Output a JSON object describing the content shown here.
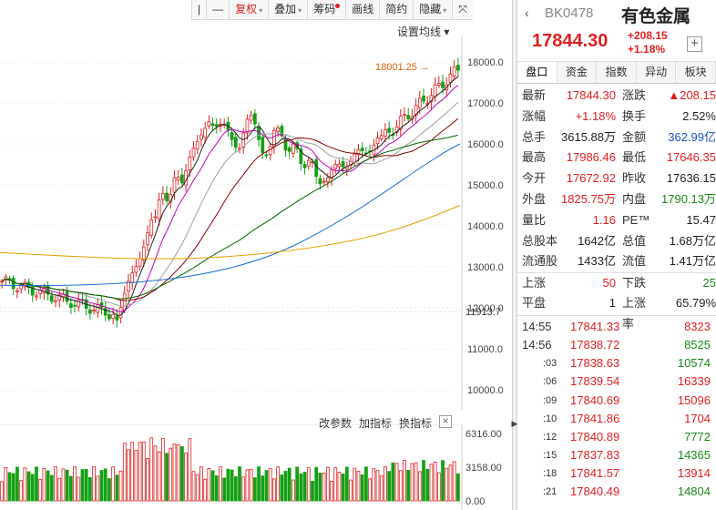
{
  "toolbar": {
    "items": [
      {
        "label": "|",
        "name": "toolbar-pipe-button",
        "caret": false
      },
      {
        "label": "—",
        "name": "toolbar-minus-button",
        "caret": false
      },
      {
        "label": "复权",
        "name": "toolbar-adjust-button",
        "caret": true,
        "active": true
      },
      {
        "label": "叠加",
        "name": "toolbar-overlay-button",
        "caret": true
      },
      {
        "label": "筹码",
        "name": "toolbar-chips-button",
        "dot": true
      },
      {
        "label": "画线",
        "name": "toolbar-draw-button"
      },
      {
        "label": "简约",
        "name": "toolbar-simple-button"
      },
      {
        "label": "隐藏",
        "name": "toolbar-hide-button",
        "caret": true
      },
      {
        "label": "⤧",
        "name": "toolbar-fullscreen-button"
      }
    ],
    "ma_settings": "设置均线 ▾"
  },
  "chart": {
    "price_axis": [
      "18000.0",
      "17000.0",
      "16000.0",
      "15000.0",
      "14000.0",
      "13000.0",
      "12000.0",
      "11000.0",
      "10000.0"
    ],
    "price_marker": "11913.7",
    "high_marker": "18001.25",
    "vol_axis": [
      "6316.00",
      "3158.00",
      "0.00"
    ],
    "indicator_buttons": [
      "改参数",
      "加指标",
      "换指标"
    ],
    "colors": {
      "up": "#e02020",
      "down": "#14a014",
      "ma5": "#222222",
      "ma10": "#c000c0",
      "ma20": "#a0a0a0",
      "ma30": "#8b0000",
      "ma60": "#006400",
      "ma120": "#1e6fd0",
      "ma250": "#e6a000"
    }
  },
  "panel": {
    "code": "BK0478",
    "name": "有色金属",
    "price": "17844.30",
    "change": "+208.15",
    "change_pct": "+1.18%",
    "tabs": [
      "盘口",
      "资金",
      "指数",
      "异动",
      "板块"
    ],
    "stats": [
      {
        "l1": "最新",
        "v1": "17844.30",
        "c1": "red",
        "l2": "涨跌",
        "v2": "▲208.15",
        "c2": "red"
      },
      {
        "l1": "涨幅",
        "v1": "+1.18%",
        "c1": "red",
        "l2": "换手",
        "v2": "2.52%",
        "c2": "blk"
      },
      {
        "l1": "总手",
        "v1": "3615.88万",
        "c1": "blk",
        "l2": "金额",
        "v2": "362.99亿",
        "c2": "blue"
      },
      {
        "l1": "最高",
        "v1": "17986.46",
        "c1": "red",
        "l2": "最低",
        "v2": "17646.35",
        "c2": "red"
      },
      {
        "l1": "今开",
        "v1": "17672.92",
        "c1": "red",
        "l2": "昨收",
        "v2": "17636.15",
        "c2": "blk"
      },
      {
        "l1": "外盘",
        "v1": "1825.75万",
        "c1": "red",
        "l2": "内盘",
        "v2": "1790.13万",
        "c2": "green"
      },
      {
        "l1": "量比",
        "v1": "1.16",
        "c1": "red",
        "l2": "PE™",
        "v2": "15.47",
        "c2": "blk"
      },
      {
        "l1": "总股本",
        "v1": "1642亿",
        "c1": "blk",
        "l2": "总值",
        "v2": "1.68万亿",
        "c2": "blk"
      },
      {
        "l1": "流通股",
        "v1": "1433亿",
        "c1": "blk",
        "l2": "流值",
        "v2": "1.41万亿",
        "c2": "blk"
      },
      {
        "l1": "上涨",
        "v1": "50",
        "c1": "red",
        "l2": "下跌",
        "v2": "25",
        "c2": "green"
      },
      {
        "l1": "平盘",
        "v1": "1",
        "c1": "blk",
        "l2": "上涨率",
        "v2": "65.79%",
        "c2": "blk"
      }
    ],
    "ticks": [
      {
        "t": "14:55",
        "sub": false,
        "p": "17841.33",
        "v": "8323",
        "c": "red"
      },
      {
        "t": "14:56",
        "sub": false,
        "p": "17838.72",
        "v": "8525",
        "c": "green"
      },
      {
        "t": ":03",
        "sub": true,
        "p": "17838.63",
        "v": "10574",
        "c": "green"
      },
      {
        "t": ":06",
        "sub": true,
        "p": "17839.54",
        "v": "16339",
        "c": "red"
      },
      {
        "t": ":09",
        "sub": true,
        "p": "17840.69",
        "v": "15096",
        "c": "red"
      },
      {
        "t": ":10",
        "sub": true,
        "p": "17841.86",
        "v": "1704",
        "c": "red"
      },
      {
        "t": ":12",
        "sub": true,
        "p": "17840.89",
        "v": "7772",
        "c": "green"
      },
      {
        "t": ":15",
        "sub": true,
        "p": "17837.83",
        "v": "14365",
        "c": "green"
      },
      {
        "t": ":18",
        "sub": true,
        "p": "17841.57",
        "v": "13914",
        "c": "red"
      },
      {
        "t": ":21",
        "sub": true,
        "p": "17840.49",
        "v": "14804",
        "c": "green"
      }
    ]
  }
}
